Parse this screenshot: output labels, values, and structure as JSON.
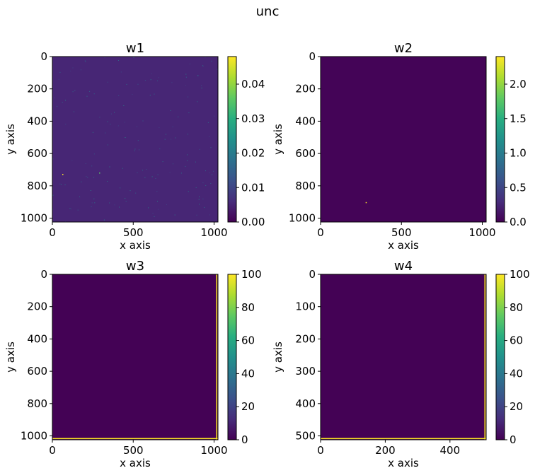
{
  "figure": {
    "suptitle": "unc"
  },
  "colors": {
    "viridis_low": "#440154",
    "viridis_high": "#fde725",
    "panel_bg": "#440154"
  },
  "chart_data": [
    {
      "type": "heatmap",
      "title": "w1",
      "xlabel": "x axis",
      "ylabel": "y axis",
      "xlim": [
        0,
        1024
      ],
      "ylim": [
        1024,
        0
      ],
      "xticks": [
        0,
        500,
        1000
      ],
      "yticks": [
        0,
        200,
        400,
        600,
        800,
        1000
      ],
      "colorbar": {
        "min": 0,
        "max": 0.048,
        "ticks": [
          0.0,
          0.01,
          0.02,
          0.03,
          0.04
        ],
        "tick_labels": [
          "0.00",
          "0.01",
          "0.02",
          "0.03",
          "0.04"
        ]
      },
      "background_value": 0.005,
      "colormap": "viridis"
    },
    {
      "type": "heatmap",
      "title": "w2",
      "xlabel": "x axis",
      "ylabel": "y axis",
      "xlim": [
        0,
        1024
      ],
      "ylim": [
        1024,
        0
      ],
      "xticks": [
        0,
        500,
        1000
      ],
      "yticks": [
        0,
        200,
        400,
        600,
        800,
        1000
      ],
      "colorbar": {
        "min": 0,
        "max": 2.4,
        "ticks": [
          0.0,
          0.5,
          1.0,
          1.5,
          2.0
        ],
        "tick_labels": [
          "0.0",
          "0.5",
          "1.0",
          "1.5",
          "2.0"
        ]
      },
      "background_value": 0.02,
      "hot_pixels": [
        {
          "x": 282,
          "y": 904,
          "value": 2.4
        }
      ],
      "colormap": "viridis"
    },
    {
      "type": "heatmap",
      "title": "w3",
      "xlabel": "x axis",
      "ylabel": "y axis",
      "xlim": [
        0,
        1024
      ],
      "ylim": [
        1024,
        0
      ],
      "xticks": [
        0,
        500,
        1000
      ],
      "yticks": [
        0,
        200,
        400,
        600,
        800,
        1000
      ],
      "colorbar": {
        "min": 0,
        "max": 100,
        "ticks": [
          0,
          20,
          40,
          60,
          80,
          100
        ],
        "tick_labels": [
          "0",
          "20",
          "40",
          "60",
          "80",
          "100"
        ]
      },
      "background_value": 0.3,
      "edge_value": 100,
      "colormap": "viridis"
    },
    {
      "type": "heatmap",
      "title": "w4",
      "xlabel": "x axis",
      "ylabel": "y axis",
      "xlim": [
        0,
        512
      ],
      "ylim": [
        512,
        0
      ],
      "xticks": [
        0,
        200,
        400
      ],
      "yticks": [
        0,
        100,
        200,
        300,
        400,
        500
      ],
      "colorbar": {
        "min": 0,
        "max": 100,
        "ticks": [
          0,
          20,
          40,
          60,
          80,
          100
        ],
        "tick_labels": [
          "0",
          "20",
          "40",
          "60",
          "80",
          "100"
        ]
      },
      "background_value": 0.3,
      "edge_value": 100,
      "colormap": "viridis"
    }
  ]
}
